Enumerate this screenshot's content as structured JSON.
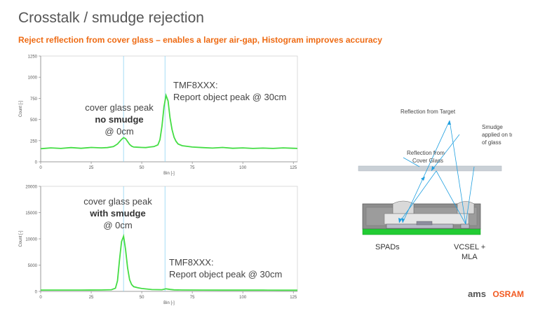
{
  "title": "Crosstalk / smudge rejection",
  "subtitle": "Reject reflection from cover glass – enables a larger air-gap, Histogram improves accuracy",
  "chart_data": [
    {
      "type": "line",
      "xlabel": "Bin [-]",
      "ylabel": "Count [-]",
      "xlim": [
        0,
        127
      ],
      "ylim": [
        0,
        1250
      ],
      "xticks": [
        0,
        25,
        50,
        75,
        100,
        125
      ],
      "yticks": [
        0,
        250,
        500,
        750,
        1000,
        1250
      ],
      "color": "#44dd44",
      "x": [
        0,
        5,
        10,
        15,
        20,
        25,
        30,
        33,
        36,
        38,
        40,
        41,
        42,
        43,
        44,
        45,
        46,
        48,
        50,
        52,
        54,
        56,
        58,
        59,
        60,
        61,
        62,
        63,
        64,
        65,
        66,
        67,
        68,
        70,
        75,
        80,
        85,
        90,
        95,
        100,
        105,
        110,
        115,
        120,
        125,
        127
      ],
      "y": [
        155,
        165,
        158,
        168,
        160,
        170,
        165,
        168,
        180,
        210,
        265,
        285,
        275,
        240,
        205,
        185,
        175,
        172,
        170,
        168,
        175,
        180,
        200,
        260,
        420,
        650,
        785,
        720,
        520,
        380,
        290,
        240,
        210,
        190,
        175,
        168,
        162,
        170,
        160,
        165,
        158,
        162,
        158,
        165,
        160,
        158
      ],
      "annotations": [
        {
          "line1": "cover glass peak",
          "line2": "no smudge",
          "line3": "@ 0cm"
        },
        {
          "line1": "TMF8XXX:",
          "line2": "Report object peak @ 30cm"
        }
      ]
    },
    {
      "type": "line",
      "xlabel": "Bin [-]",
      "ylabel": "Count [-]",
      "xlim": [
        0,
        127
      ],
      "ylim": [
        0,
        20000
      ],
      "xticks": [
        0,
        25,
        50,
        75,
        100,
        125
      ],
      "yticks": [
        0,
        5000,
        10000,
        15000,
        20000
      ],
      "color": "#44dd44",
      "x": [
        0,
        10,
        20,
        30,
        35,
        37,
        38,
        39,
        40,
        41,
        42,
        43,
        44,
        45,
        46,
        48,
        50,
        55,
        60,
        62,
        64,
        66,
        70,
        80,
        90,
        100,
        110,
        120,
        127
      ],
      "y": [
        250,
        260,
        250,
        270,
        320,
        600,
        2000,
        6000,
        9500,
        10500,
        8000,
        4500,
        2200,
        1300,
        900,
        700,
        550,
        350,
        320,
        500,
        380,
        300,
        270,
        250,
        240,
        240,
        235,
        230,
        230
      ],
      "annotations": [
        {
          "line1": "cover glass peak",
          "line2": "with smudge",
          "line3": "@ 0cm"
        },
        {
          "line1": "TMF8XXX:",
          "line2": "Report object peak @ 30cm"
        }
      ]
    }
  ],
  "diagram": {
    "reflection_target": "Reflection from Target",
    "smudge": "Smudge applied on top of glass",
    "reflection_cover": "Reflection from Cover Glass",
    "spads": "SPADs",
    "vcsel": "VCSEL + MLA"
  },
  "logo": {
    "am": "ams",
    "osram": "OSRAM"
  }
}
